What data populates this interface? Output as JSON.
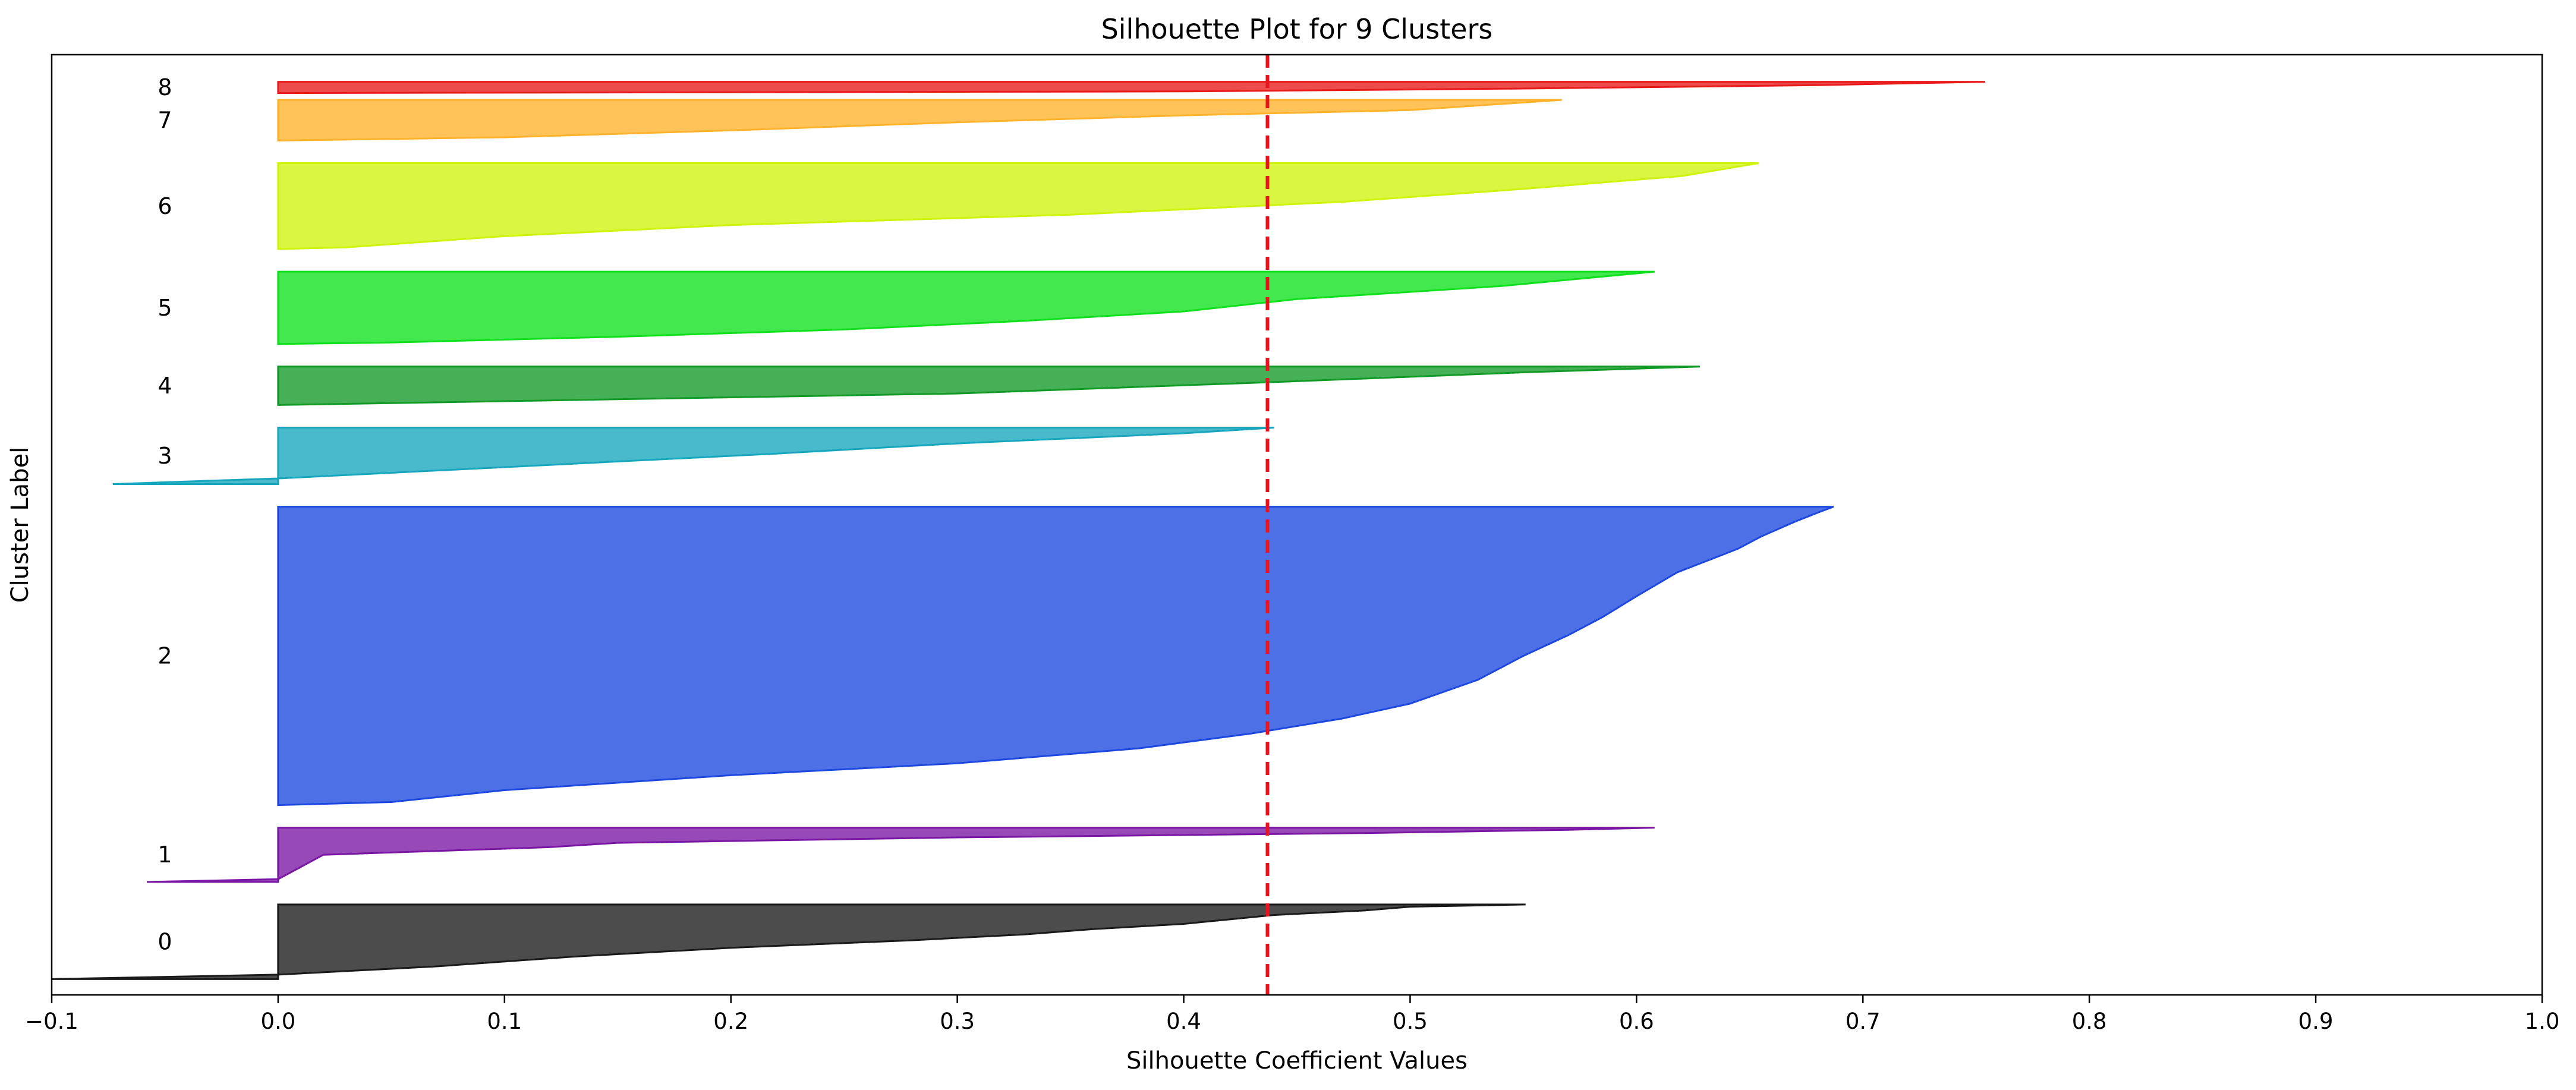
{
  "chart_data": {
    "type": "area",
    "title": "Silhouette Plot for 9 Clusters",
    "xlabel": "Silhouette Coefficient Values",
    "ylabel": "Cluster Label",
    "xlim": [
      -0.1,
      1.0
    ],
    "ylim": [
      0,
      416
    ],
    "x_ticks": [
      "−0.1",
      "0.0",
      "0.1",
      "0.2",
      "0.3",
      "0.4",
      "0.5",
      "0.6",
      "0.7",
      "0.8",
      "0.9",
      "1.0"
    ],
    "x_tick_values": [
      -0.1,
      0.0,
      0.1,
      0.2,
      0.3,
      0.4,
      0.5,
      0.6,
      0.7,
      0.8,
      0.9,
      1.0
    ],
    "grid": false,
    "average_silhouette": 0.437,
    "average_line_color": "#e8141e",
    "clusters": [
      {
        "label": "0",
        "y_lower": 7,
        "y_upper": 40,
        "color": "#1a1a1a",
        "profile": [
          [
            0.551,
            0.0
          ],
          [
            0.5,
            0.03
          ],
          [
            0.48,
            0.08
          ],
          [
            0.44,
            0.14
          ],
          [
            0.42,
            0.2
          ],
          [
            0.4,
            0.26
          ],
          [
            0.36,
            0.33
          ],
          [
            0.33,
            0.4
          ],
          [
            0.28,
            0.48
          ],
          [
            0.2,
            0.58
          ],
          [
            0.13,
            0.7
          ],
          [
            0.07,
            0.83
          ],
          [
            0.0,
            0.94
          ],
          [
            -0.1,
            1.0
          ]
        ]
      },
      {
        "label": "1",
        "y_lower": 50,
        "y_upper": 74,
        "color": "#7a16a4",
        "profile": [
          [
            0.608,
            0.0
          ],
          [
            0.57,
            0.04
          ],
          [
            0.48,
            0.1
          ],
          [
            0.3,
            0.18
          ],
          [
            0.15,
            0.28
          ],
          [
            0.12,
            0.36
          ],
          [
            0.02,
            0.5
          ],
          [
            0.0,
            0.95
          ],
          [
            -0.058,
            1.0
          ]
        ]
      },
      {
        "label": "2",
        "y_lower": 84,
        "y_upper": 216,
        "color": "#1c48e0",
        "profile": [
          [
            0.687,
            0.0
          ],
          [
            0.68,
            0.02
          ],
          [
            0.67,
            0.05
          ],
          [
            0.655,
            0.1
          ],
          [
            0.645,
            0.14
          ],
          [
            0.635,
            0.17
          ],
          [
            0.618,
            0.22
          ],
          [
            0.6,
            0.3
          ],
          [
            0.585,
            0.37
          ],
          [
            0.57,
            0.43
          ],
          [
            0.55,
            0.5
          ],
          [
            0.53,
            0.58
          ],
          [
            0.5,
            0.66
          ],
          [
            0.47,
            0.71
          ],
          [
            0.43,
            0.76
          ],
          [
            0.38,
            0.81
          ],
          [
            0.3,
            0.86
          ],
          [
            0.2,
            0.9
          ],
          [
            0.1,
            0.95
          ],
          [
            0.05,
            0.99
          ],
          [
            0.0,
            1.0
          ]
        ]
      },
      {
        "label": "3",
        "y_lower": 226,
        "y_upper": 251,
        "color": "#16a7be",
        "profile": [
          [
            0.44,
            0.0
          ],
          [
            0.4,
            0.1
          ],
          [
            0.3,
            0.28
          ],
          [
            0.22,
            0.46
          ],
          [
            0.12,
            0.66
          ],
          [
            0.05,
            0.8
          ],
          [
            0.0,
            0.9
          ],
          [
            -0.073,
            1.0
          ]
        ]
      },
      {
        "label": "4",
        "y_lower": 261,
        "y_upper": 278,
        "color": "#129a27",
        "profile": [
          [
            0.628,
            0.0
          ],
          [
            0.55,
            0.15
          ],
          [
            0.45,
            0.38
          ],
          [
            0.3,
            0.7
          ],
          [
            0.1,
            0.9
          ],
          [
            0.0,
            1.0
          ]
        ]
      },
      {
        "label": "5",
        "y_lower": 288,
        "y_upper": 320,
        "color": "#0ee01c",
        "profile": [
          [
            0.608,
            0.0
          ],
          [
            0.54,
            0.2
          ],
          [
            0.45,
            0.38
          ],
          [
            0.4,
            0.55
          ],
          [
            0.33,
            0.68
          ],
          [
            0.25,
            0.8
          ],
          [
            0.15,
            0.9
          ],
          [
            0.05,
            0.98
          ],
          [
            0.0,
            1.0
          ]
        ]
      },
      {
        "label": "6",
        "y_lower": 330,
        "y_upper": 368,
        "color": "#cff40a",
        "profile": [
          [
            0.654,
            0.0
          ],
          [
            0.62,
            0.15
          ],
          [
            0.55,
            0.3
          ],
          [
            0.47,
            0.45
          ],
          [
            0.35,
            0.6
          ],
          [
            0.2,
            0.72
          ],
          [
            0.1,
            0.85
          ],
          [
            0.03,
            0.98
          ],
          [
            0.0,
            1.0
          ]
        ]
      },
      {
        "label": "7",
        "y_lower": 378,
        "y_upper": 396,
        "color": "#ffb22a",
        "profile": [
          [
            0.567,
            0.0
          ],
          [
            0.5,
            0.25
          ],
          [
            0.4,
            0.38
          ],
          [
            0.3,
            0.55
          ],
          [
            0.2,
            0.75
          ],
          [
            0.1,
            0.92
          ],
          [
            0.0,
            1.0
          ]
        ]
      },
      {
        "label": "8",
        "y_lower": 399,
        "y_upper": 404,
        "color": "#e81a1a",
        "profile": [
          [
            0.754,
            0.0
          ],
          [
            0.68,
            0.3
          ],
          [
            0.55,
            0.6
          ],
          [
            0.4,
            0.85
          ],
          [
            0.0,
            1.0
          ]
        ]
      }
    ]
  }
}
